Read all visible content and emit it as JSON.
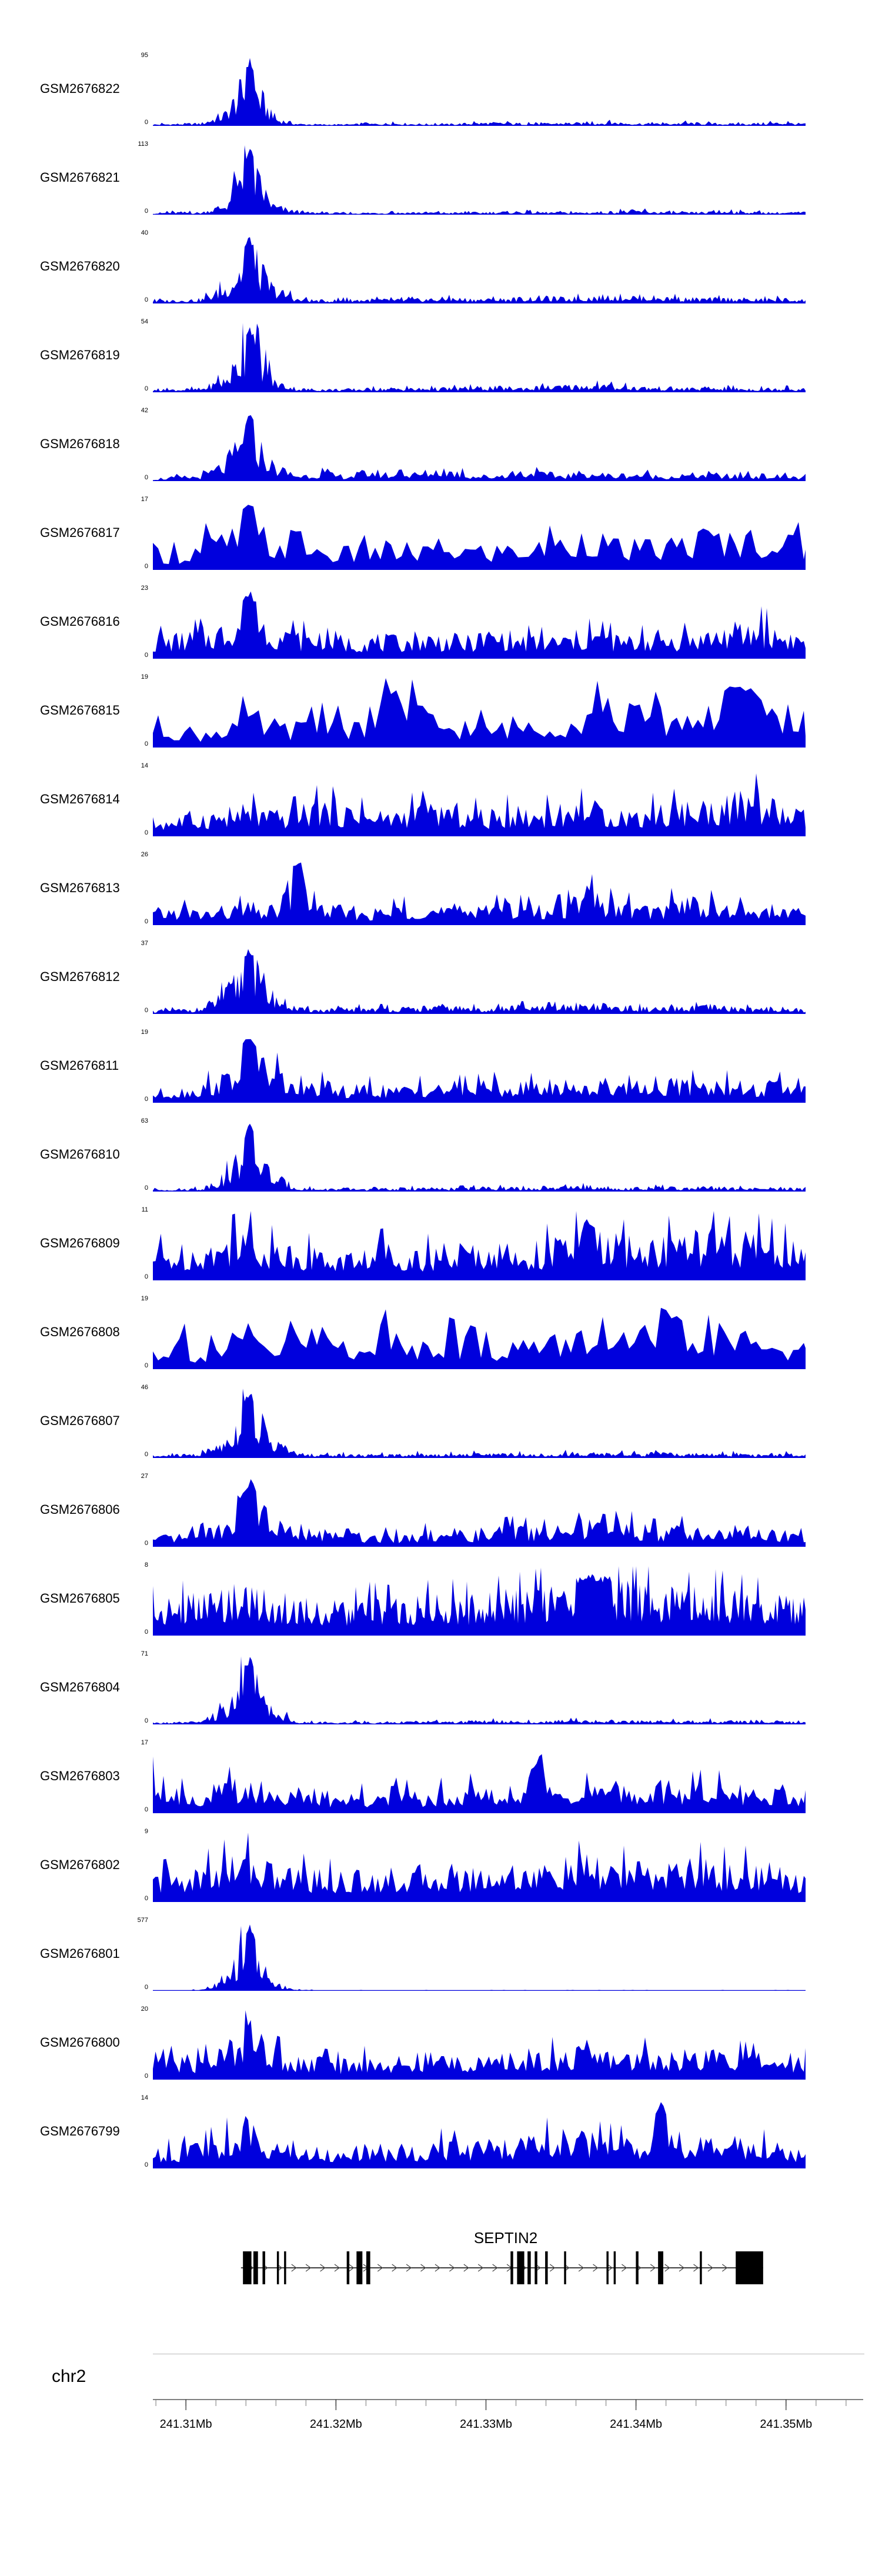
{
  "figure": {
    "background": "#ffffff",
    "track_color": "#0000dd",
    "gene_color": "#000000",
    "axis_color": "#000000"
  },
  "chart_data": {
    "type": "area",
    "title": "",
    "description": "Stacked genome-browser coverage tracks (signal vs genomic position), gene model and coordinate ruler",
    "y_baseline_label": "0",
    "x_axis": {
      "chrom": "chr2",
      "unit": "Mb",
      "start": 241.3078,
      "end": 241.3513,
      "minor_step": 0.002,
      "major_ticks": [
        {
          "value": 241.31,
          "label": "241.31Mb"
        },
        {
          "value": 241.32,
          "label": "241.32Mb"
        },
        {
          "value": 241.33,
          "label": "241.33Mb"
        },
        {
          "value": 241.34,
          "label": "241.34Mb"
        },
        {
          "value": 241.35,
          "label": "241.35Mb"
        }
      ]
    },
    "gene": {
      "name": "SEPTIN2",
      "strand": "forward",
      "span": {
        "start": 0.135,
        "end": 0.935
      },
      "exons": [
        [
          0.138,
          0.013
        ],
        [
          0.154,
          0.007
        ],
        [
          0.168,
          0.004
        ],
        [
          0.19,
          0.003
        ],
        [
          0.201,
          0.003
        ],
        [
          0.297,
          0.004
        ],
        [
          0.312,
          0.009
        ],
        [
          0.327,
          0.006
        ],
        [
          0.548,
          0.004
        ],
        [
          0.558,
          0.011
        ],
        [
          0.574,
          0.005
        ],
        [
          0.585,
          0.004
        ],
        [
          0.601,
          0.004
        ],
        [
          0.63,
          0.003
        ],
        [
          0.695,
          0.003
        ],
        [
          0.706,
          0.003
        ],
        [
          0.74,
          0.004
        ],
        [
          0.774,
          0.008
        ],
        [
          0.838,
          0.003
        ],
        [
          0.893,
          0.042
        ]
      ]
    },
    "tracks": [
      {
        "label": "GSM2676822",
        "ymax": 95,
        "texture": "fine",
        "profile": [
          0.03,
          0.04,
          0.05,
          0.25,
          1,
          0.15,
          0.04,
          0.03,
          0.03,
          0.04,
          0.05,
          0.04,
          0.03,
          0.05,
          0.06,
          0.05,
          0.04,
          0.06,
          0.05,
          0.07,
          0.05,
          0.04,
          0.06,
          0.05,
          0.04,
          0.05,
          0.06,
          0.04
        ]
      },
      {
        "label": "GSM2676821",
        "ymax": 113,
        "texture": "fine",
        "profile": [
          0.03,
          0.05,
          0.04,
          0.2,
          1,
          0.18,
          0.05,
          0.04,
          0.03,
          0.04,
          0.04,
          0.05,
          0.04,
          0.04,
          0.05,
          0.06,
          0.05,
          0.04,
          0.05,
          0.06,
          0.08,
          0.05,
          0.04,
          0.05,
          0.06,
          0.05,
          0.04,
          0.05
        ]
      },
      {
        "label": "GSM2676820",
        "ymax": 40,
        "texture": "fine",
        "profile": [
          0.05,
          0.07,
          0.08,
          0.3,
          1,
          0.3,
          0.08,
          0.06,
          0.07,
          0.08,
          0.07,
          0.08,
          0.1,
          0.09,
          0.08,
          0.1,
          0.12,
          0.1,
          0.12,
          0.15,
          0.14,
          0.12,
          0.1,
          0.09,
          0.1,
          0.08,
          0.09,
          0.07
        ]
      },
      {
        "label": "GSM2676819",
        "ymax": 54,
        "texture": "fine",
        "profile": [
          0.04,
          0.06,
          0.07,
          0.25,
          1,
          0.22,
          0.07,
          0.06,
          0.06,
          0.07,
          0.08,
          0.07,
          0.08,
          0.09,
          0.1,
          0.09,
          0.1,
          0.12,
          0.14,
          0.12,
          0.1,
          0.09,
          0.08,
          0.09,
          0.08,
          0.07,
          0.08,
          0.06
        ]
      },
      {
        "label": "GSM2676818",
        "ymax": 42,
        "texture": "medium",
        "profile": [
          0.05,
          0.08,
          0.1,
          0.35,
          1,
          0.3,
          0.12,
          0.15,
          0.1,
          0.2,
          0.12,
          0.15,
          0.25,
          0.12,
          0.1,
          0.2,
          0.15,
          0.12,
          0.18,
          0.12,
          0.15,
          0.1,
          0.12,
          0.15,
          0.1,
          0.12,
          0.1,
          0.08
        ]
      },
      {
        "label": "GSM2676817",
        "ymax": 17,
        "texture": "coarse",
        "profile": [
          0.4,
          0.3,
          0.5,
          0.6,
          1,
          0.5,
          0.7,
          0.4,
          0.35,
          0.4,
          0.45,
          0.4,
          0.5,
          0.45,
          0.4,
          0.5,
          0.45,
          0.55,
          0.8,
          0.5,
          0.45,
          0.5,
          0.6,
          0.7,
          0.65,
          0.7,
          0.6,
          0.5
        ]
      },
      {
        "label": "GSM2676816",
        "ymax": 23,
        "texture": "medium",
        "profile": [
          0.35,
          0.4,
          0.45,
          0.6,
          1,
          0.55,
          0.4,
          0.5,
          0.35,
          0.4,
          0.35,
          0.45,
          0.4,
          0.35,
          0.5,
          0.4,
          0.35,
          0.4,
          0.45,
          0.4,
          0.35,
          0.45,
          0.4,
          0.5,
          0.55,
          0.6,
          0.5,
          0.4
        ]
      },
      {
        "label": "GSM2676815",
        "ymax": 19,
        "texture": "coarse",
        "profile": [
          0.5,
          0.4,
          0.3,
          0.5,
          0.6,
          0.45,
          0.4,
          0.5,
          0.45,
          0.6,
          0.9,
          0.7,
          0.5,
          0.45,
          0.4,
          0.5,
          0.6,
          0.55,
          0.7,
          0.8,
          0.7,
          0.6,
          0.7,
          0.8,
          0.9,
          0.85,
          0.8,
          0.6
        ]
      },
      {
        "label": "GSM2676814",
        "ymax": 14,
        "texture": "medium",
        "profile": [
          0.3,
          0.35,
          0.4,
          0.45,
          0.5,
          0.4,
          0.45,
          0.6,
          0.5,
          0.4,
          0.45,
          0.5,
          0.55,
          0.45,
          0.4,
          0.5,
          0.45,
          0.5,
          0.55,
          0.5,
          0.45,
          0.5,
          0.55,
          0.6,
          0.65,
          0.7,
          0.5,
          0.4
        ]
      },
      {
        "label": "GSM2676813",
        "ymax": 26,
        "texture": "medium",
        "profile": [
          0.25,
          0.3,
          0.25,
          0.3,
          0.35,
          0.3,
          1,
          0.35,
          0.3,
          0.25,
          0.3,
          0.35,
          0.3,
          0.35,
          0.5,
          0.35,
          0.3,
          0.35,
          0.6,
          0.4,
          0.35,
          0.3,
          0.55,
          0.4,
          0.3,
          0.35,
          0.3,
          0.25
        ]
      },
      {
        "label": "GSM2676812",
        "ymax": 37,
        "texture": "fine",
        "profile": [
          0.06,
          0.08,
          0.1,
          0.4,
          1,
          0.35,
          0.1,
          0.08,
          0.1,
          0.12,
          0.1,
          0.12,
          0.15,
          0.12,
          0.1,
          0.15,
          0.12,
          0.15,
          0.2,
          0.15,
          0.12,
          0.1,
          0.12,
          0.15,
          0.12,
          0.1,
          0.12,
          0.08
        ]
      },
      {
        "label": "GSM2676811",
        "ymax": 19,
        "texture": "medium",
        "profile": [
          0.2,
          0.25,
          0.3,
          0.5,
          1,
          0.6,
          0.3,
          0.35,
          0.25,
          0.3,
          0.25,
          0.3,
          0.35,
          0.3,
          0.35,
          0.3,
          0.35,
          0.4,
          0.35,
          0.4,
          0.45,
          0.4,
          0.35,
          0.4,
          0.35,
          0.3,
          0.35,
          0.25
        ]
      },
      {
        "label": "GSM2676810",
        "ymax": 63,
        "texture": "fine",
        "profile": [
          0.04,
          0.05,
          0.06,
          0.3,
          1,
          0.3,
          0.07,
          0.05,
          0.06,
          0.05,
          0.06,
          0.07,
          0.06,
          0.07,
          0.08,
          0.07,
          0.06,
          0.08,
          0.1,
          0.08,
          0.07,
          0.08,
          0.07,
          0.08,
          0.07,
          0.06,
          0.07,
          0.05
        ]
      },
      {
        "label": "GSM2676809",
        "ymax": 11,
        "texture": "medium",
        "profile": [
          0.5,
          0.55,
          0.6,
          0.7,
          0.8,
          0.6,
          0.55,
          0.5,
          0.45,
          0.55,
          0.6,
          0.5,
          0.55,
          0.6,
          0.65,
          0.55,
          0.6,
          0.7,
          0.9,
          0.7,
          0.65,
          0.7,
          0.75,
          0.8,
          0.7,
          0.75,
          0.65,
          0.55
        ]
      },
      {
        "label": "GSM2676808",
        "ymax": 19,
        "texture": "coarse",
        "profile": [
          0.4,
          0.6,
          0.3,
          0.5,
          0.7,
          0.4,
          0.6,
          0.8,
          0.5,
          0.6,
          0.7,
          0.5,
          0.6,
          0.5,
          0.4,
          0.6,
          0.5,
          0.6,
          0.7,
          0.5,
          0.6,
          0.9,
          0.7,
          0.8,
          0.6,
          0.7,
          0.5,
          0.4
        ]
      },
      {
        "label": "GSM2676807",
        "ymax": 46,
        "texture": "fine",
        "profile": [
          0.04,
          0.06,
          0.08,
          0.35,
          1,
          0.35,
          0.08,
          0.06,
          0.07,
          0.06,
          0.07,
          0.08,
          0.07,
          0.08,
          0.09,
          0.08,
          0.07,
          0.09,
          0.1,
          0.09,
          0.08,
          0.09,
          0.08,
          0.07,
          0.08,
          0.07,
          0.08,
          0.06
        ]
      },
      {
        "label": "GSM2676806",
        "ymax": 27,
        "texture": "medium",
        "profile": [
          0.15,
          0.2,
          0.25,
          0.5,
          1,
          0.5,
          0.25,
          0.3,
          0.2,
          0.25,
          0.2,
          0.25,
          0.3,
          0.25,
          0.3,
          0.35,
          0.3,
          0.35,
          0.4,
          0.6,
          0.35,
          0.3,
          0.35,
          0.3,
          0.35,
          0.3,
          0.25,
          0.2
        ]
      },
      {
        "label": "GSM2676805",
        "ymax": 8,
        "texture": "fine",
        "profile": [
          0.55,
          0.6,
          0.65,
          0.75,
          0.85,
          0.65,
          0.6,
          0.55,
          0.5,
          0.6,
          0.55,
          0.6,
          0.65,
          0.6,
          0.65,
          0.7,
          0.75,
          0.8,
          0.9,
          0.85,
          0.8,
          0.75,
          0.7,
          0.75,
          0.7,
          0.65,
          0.6,
          0.55
        ]
      },
      {
        "label": "GSM2676804",
        "ymax": 71,
        "texture": "fine",
        "profile": [
          0.03,
          0.04,
          0.05,
          0.3,
          1,
          0.25,
          0.05,
          0.04,
          0.05,
          0.04,
          0.05,
          0.06,
          0.05,
          0.06,
          0.07,
          0.06,
          0.05,
          0.07,
          0.08,
          0.07,
          0.06,
          0.07,
          0.06,
          0.07,
          0.06,
          0.05,
          0.06,
          0.04
        ]
      },
      {
        "label": "GSM2676803",
        "ymax": 17,
        "texture": "medium",
        "profile": [
          0.9,
          0.4,
          0.35,
          0.5,
          0.6,
          0.45,
          0.4,
          0.35,
          0.3,
          0.35,
          0.4,
          0.35,
          0.4,
          0.45,
          0.4,
          0.45,
          0.9,
          0.5,
          0.45,
          0.5,
          0.45,
          0.5,
          0.45,
          0.5,
          0.45,
          0.4,
          0.45,
          0.35
        ]
      },
      {
        "label": "GSM2676802",
        "ymax": 9,
        "texture": "medium",
        "profile": [
          0.45,
          0.5,
          0.55,
          0.7,
          0.8,
          0.6,
          0.55,
          0.5,
          0.45,
          0.55,
          0.5,
          0.55,
          0.6,
          0.55,
          0.6,
          0.65,
          0.6,
          0.65,
          0.7,
          0.65,
          0.6,
          0.65,
          0.7,
          0.65,
          0.6,
          0.65,
          0.55,
          0.5
        ]
      },
      {
        "label": "GSM2676801",
        "ymax": 577,
        "texture": "fine",
        "profile": [
          0.01,
          0.01,
          0.02,
          0.2,
          1,
          0.15,
          0.02,
          0.01,
          0.01,
          0.01,
          0.01,
          0.01,
          0.01,
          0.01,
          0.01,
          0.01,
          0.01,
          0.01,
          0.01,
          0.01,
          0.01,
          0.01,
          0.01,
          0.01,
          0.01,
          0.01,
          0.01,
          0.01
        ]
      },
      {
        "label": "GSM2676800",
        "ymax": 20,
        "texture": "medium",
        "profile": [
          0.3,
          0.4,
          0.35,
          0.6,
          0.9,
          0.5,
          0.4,
          0.35,
          0.3,
          0.4,
          0.35,
          0.4,
          0.45,
          0.4,
          0.35,
          0.45,
          0.5,
          0.45,
          0.6,
          0.5,
          0.45,
          0.5,
          0.45,
          0.5,
          0.45,
          0.4,
          0.45,
          0.35
        ]
      },
      {
        "label": "GSM2676799",
        "ymax": 14,
        "texture": "medium",
        "profile": [
          0.3,
          0.35,
          0.4,
          0.55,
          0.8,
          0.5,
          0.4,
          0.35,
          0.3,
          0.4,
          0.35,
          0.4,
          0.45,
          0.4,
          0.45,
          0.5,
          0.55,
          0.6,
          0.55,
          0.5,
          0.45,
          1,
          0.5,
          0.45,
          0.5,
          0.45,
          0.4,
          0.35
        ]
      }
    ]
  }
}
